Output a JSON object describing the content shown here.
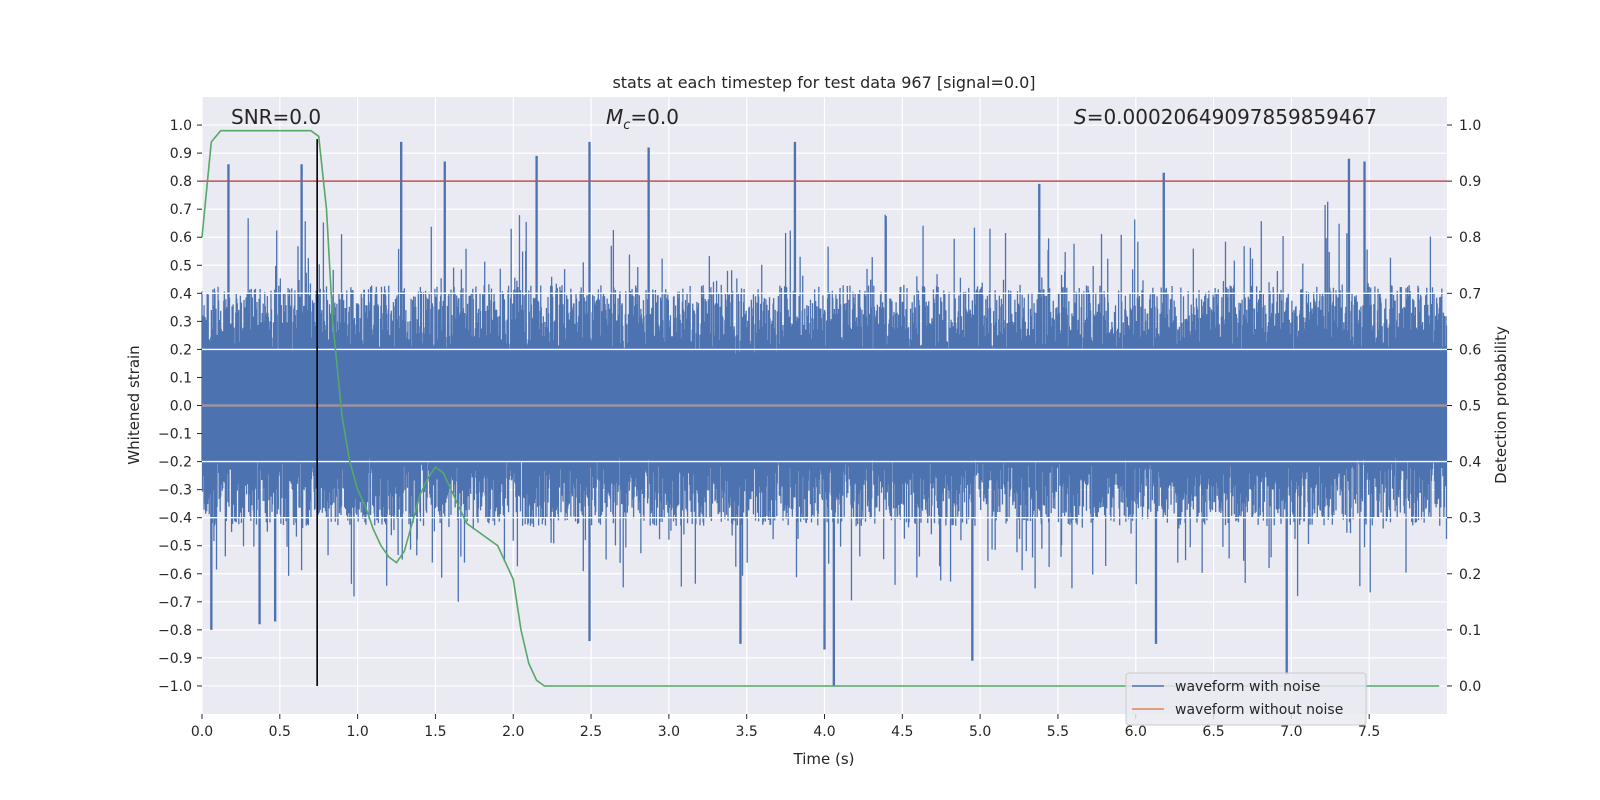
{
  "chart_data": {
    "type": "line",
    "title": "stats at each timestep for test data 967 [signal=0.0]",
    "xlabel": "Time (s)",
    "ylabel": "Whitened strain",
    "y2label": "Detection probability",
    "xlim": [
      0.0,
      8.0
    ],
    "ylim": [
      -1.1,
      1.1
    ],
    "y2lim": [
      -0.05,
      1.05
    ],
    "x_ticks": [
      0.0,
      0.5,
      1.0,
      1.5,
      2.0,
      2.5,
      3.0,
      3.5,
      4.0,
      4.5,
      5.0,
      5.5,
      6.0,
      6.5,
      7.0,
      7.5
    ],
    "x_tick_labels": [
      "0.0",
      "0.5",
      "1.0",
      "1.5",
      "2.0",
      "2.5",
      "3.0",
      "3.5",
      "4.0",
      "4.5",
      "5.0",
      "5.5",
      "6.0",
      "6.5",
      "7.0",
      "7.5"
    ],
    "y_ticks": [
      1.0,
      0.9,
      0.8,
      0.7,
      0.6,
      0.5,
      0.4,
      0.3,
      0.2,
      0.1,
      0.0,
      -0.1,
      -0.2,
      -0.3,
      -0.4,
      -0.5,
      -0.6,
      -0.7,
      -0.8,
      -0.9,
      -1.0
    ],
    "y_tick_labels": [
      "1.0",
      "0.9",
      "0.8",
      "0.7",
      "0.6",
      "0.5",
      "0.4",
      "0.3",
      "0.2",
      "0.1",
      "0.0",
      "−0.1",
      "−0.2",
      "−0.3",
      "−0.4",
      "−0.5",
      "−0.6",
      "−0.7",
      "−0.8",
      "−0.9",
      "−1.0"
    ],
    "y2_ticks": [
      1.0,
      0.9,
      0.8,
      0.7,
      0.6,
      0.5,
      0.4,
      0.3,
      0.2,
      0.1,
      0.0
    ],
    "y2_tick_labels": [
      "1.0",
      "0.9",
      "0.8",
      "0.7",
      "0.6",
      "0.5",
      "0.4",
      "0.3",
      "0.2",
      "0.1",
      "0.0"
    ],
    "grid": true,
    "legend_position": "bottom-right",
    "annotations": {
      "snr": "SNR=0.0",
      "mc_symbol": "M",
      "mc_sub": "c",
      "mc_value": "=0.0",
      "s_symbol": "S",
      "s_value": "=0.00020649097859859467"
    },
    "series": [
      {
        "name": "waveform with noise",
        "color": "#4c72b0",
        "axis": "left",
        "description": "dense whitened strain noise trace, 0 to 8 s",
        "envelope_typical": [
          -0.45,
          0.45
        ],
        "notable_peaks": [
          {
            "x": 0.17,
            "y": 0.86
          },
          {
            "x": 0.64,
            "y": 0.86
          },
          {
            "x": 1.28,
            "y": 0.94
          },
          {
            "x": 1.56,
            "y": 0.87
          },
          {
            "x": 2.15,
            "y": 0.89
          },
          {
            "x": 2.49,
            "y": 0.94
          },
          {
            "x": 2.87,
            "y": 0.92
          },
          {
            "x": 3.81,
            "y": 0.94
          },
          {
            "x": 5.38,
            "y": 0.79
          },
          {
            "x": 6.18,
            "y": 0.83
          },
          {
            "x": 7.37,
            "y": 0.88
          },
          {
            "x": 7.47,
            "y": 0.87
          }
        ],
        "notable_troughs": [
          {
            "x": 0.06,
            "y": -0.8
          },
          {
            "x": 0.37,
            "y": -0.78
          },
          {
            "x": 0.47,
            "y": -0.77
          },
          {
            "x": 2.49,
            "y": -0.84
          },
          {
            "x": 3.46,
            "y": -0.85
          },
          {
            "x": 4.0,
            "y": -0.87
          },
          {
            "x": 4.06,
            "y": -1.0
          },
          {
            "x": 4.95,
            "y": -0.91
          },
          {
            "x": 6.13,
            "y": -0.85
          },
          {
            "x": 6.97,
            "y": -0.96
          }
        ]
      },
      {
        "name": "waveform without noise",
        "color": "#dd8452",
        "axis": "left",
        "x": [
          0.0,
          8.0
        ],
        "y": [
          0.0,
          0.0
        ]
      },
      {
        "color": "#55a868",
        "axis": "right",
        "x": [
          0.0,
          0.06,
          0.12,
          0.2,
          0.4,
          0.6,
          0.7,
          0.75,
          0.8,
          0.84,
          0.9,
          0.95,
          1.0,
          1.05,
          1.1,
          1.15,
          1.2,
          1.25,
          1.3,
          1.35,
          1.4,
          1.45,
          1.5,
          1.55,
          1.6,
          1.65,
          1.7,
          1.75,
          1.8,
          1.85,
          1.9,
          1.95,
          2.0,
          2.05,
          2.1,
          2.15,
          2.2,
          3.0,
          4.0,
          5.0,
          6.0,
          7.0,
          7.95
        ],
        "y": [
          0.8,
          0.97,
          0.99,
          0.99,
          0.99,
          0.99,
          0.99,
          0.98,
          0.85,
          0.65,
          0.48,
          0.4,
          0.35,
          0.32,
          0.28,
          0.25,
          0.23,
          0.22,
          0.24,
          0.29,
          0.34,
          0.37,
          0.39,
          0.38,
          0.35,
          0.32,
          0.29,
          0.28,
          0.27,
          0.26,
          0.25,
          0.22,
          0.19,
          0.1,
          0.04,
          0.01,
          0.0,
          0.0,
          0.0,
          0.0,
          0.0,
          0.0,
          0.0
        ]
      },
      {
        "color": "#c44e52",
        "axis": "right",
        "type": "hline",
        "y": 0.9
      },
      {
        "color": "#000000",
        "axis": "left",
        "type": "vline",
        "x": 0.74,
        "y": [
          -1.0,
          0.95
        ]
      }
    ],
    "gridline_overlays_right_axis": [
      0.7,
      0.6,
      0.5,
      0.4,
      0.3
    ],
    "legend": [
      {
        "name": "waveform with noise",
        "color": "#4c72b0"
      },
      {
        "name": "waveform without noise",
        "color": "#dd8452"
      }
    ]
  }
}
